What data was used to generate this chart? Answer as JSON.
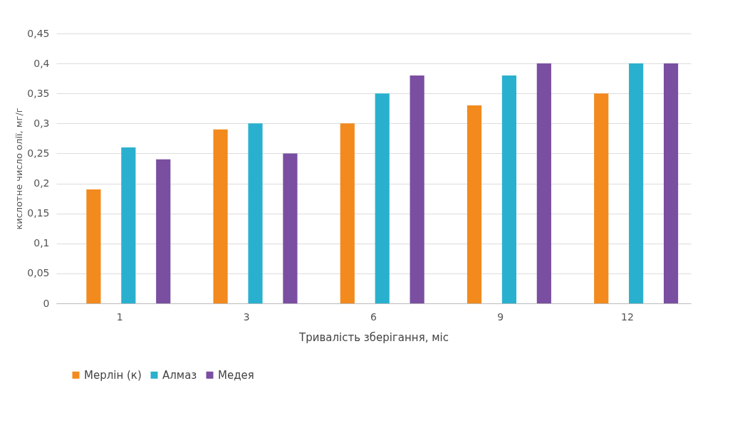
{
  "chart_data": {
    "type": "bar",
    "xlabel": "Тривалість зберігання, міс",
    "ylabel": "кислотне число олії, мг/г",
    "categories": [
      "1",
      "3",
      "6",
      "9",
      "12"
    ],
    "series": [
      {
        "name": "Мерлін (к)",
        "color": "#f28a1e",
        "values": [
          0.19,
          0.29,
          0.3,
          0.33,
          0.35
        ]
      },
      {
        "name": "Алмаз",
        "color": "#2ab0cf",
        "values": [
          0.26,
          0.3,
          0.35,
          0.38,
          0.4
        ]
      },
      {
        "name": "Медея",
        "color": "#7a4ea0",
        "values": [
          0.24,
          0.25,
          0.38,
          0.4,
          0.4
        ]
      }
    ],
    "ylim": [
      0,
      0.45
    ],
    "yticks": [
      0,
      {
        "value": 0.05,
        "label": "0,05"
      },
      {
        "value": 0.1,
        "label": "0,1"
      },
      {
        "value": 0.15,
        "label": "0,15"
      },
      {
        "value": 0.2,
        "label": "0,2"
      },
      {
        "value": 0.25,
        "label": "0,25"
      },
      {
        "value": 0.3,
        "label": "0,3"
      },
      {
        "value": 0.35,
        "label": "0,35"
      },
      {
        "value": 0.4,
        "label": "0,4"
      },
      {
        "value": 0.45,
        "label": "0,45"
      }
    ],
    "grid": "y",
    "legend": "bottom"
  }
}
